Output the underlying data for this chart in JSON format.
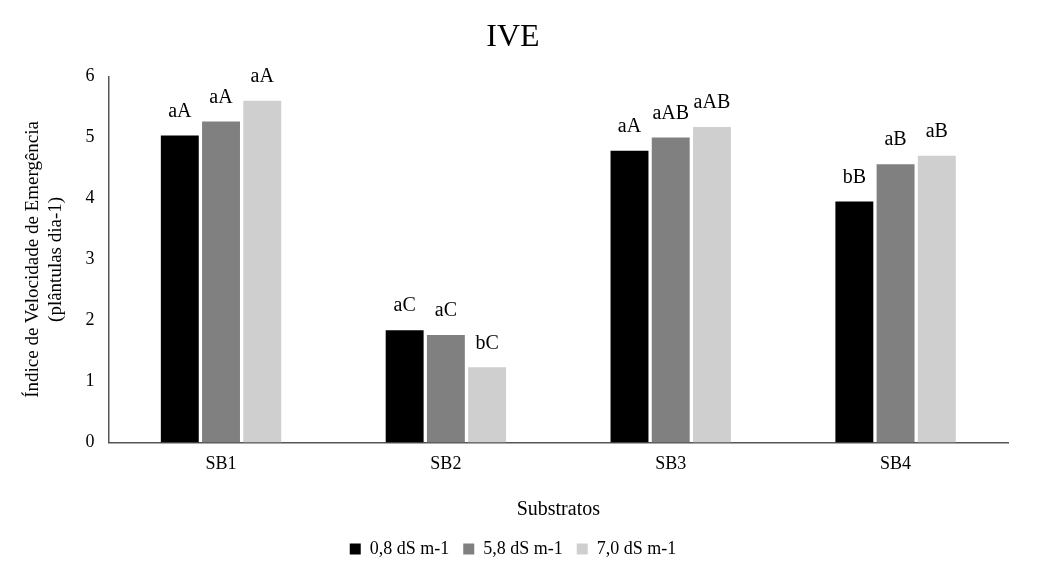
{
  "chart_data": {
    "type": "bar",
    "title": "IVE",
    "xlabel": "Substratos",
    "ylabel": "Índice de Velocidade de Emergência\n(plântulas dia-1)",
    "categories": [
      "SB1",
      "SB2",
      "SB3",
      "SB4"
    ],
    "series": [
      {
        "name": "0,8 dS m-1",
        "color": "#000000",
        "values": [
          5.03,
          1.84,
          4.78,
          3.95
        ],
        "value_labels": [
          "aA",
          "aC",
          "aA",
          "bB"
        ]
      },
      {
        "name": "5,8 dS m-1",
        "color": "#808080",
        "values": [
          5.26,
          1.76,
          5.0,
          4.56
        ],
        "value_labels": [
          "aA",
          "aC",
          "aAB",
          "aB"
        ]
      },
      {
        "name": "7,0 dS m-1",
        "color": "#d0cfd0",
        "values": [
          5.6,
          1.23,
          5.17,
          4.7
        ],
        "value_labels": [
          "aA",
          "bC",
          "aAB",
          "aB"
        ]
      }
    ],
    "ylim": [
      0,
      6
    ],
    "yticks": [
      0,
      1,
      2,
      3,
      4,
      5,
      6
    ],
    "grid": false,
    "legend": "bottom"
  }
}
